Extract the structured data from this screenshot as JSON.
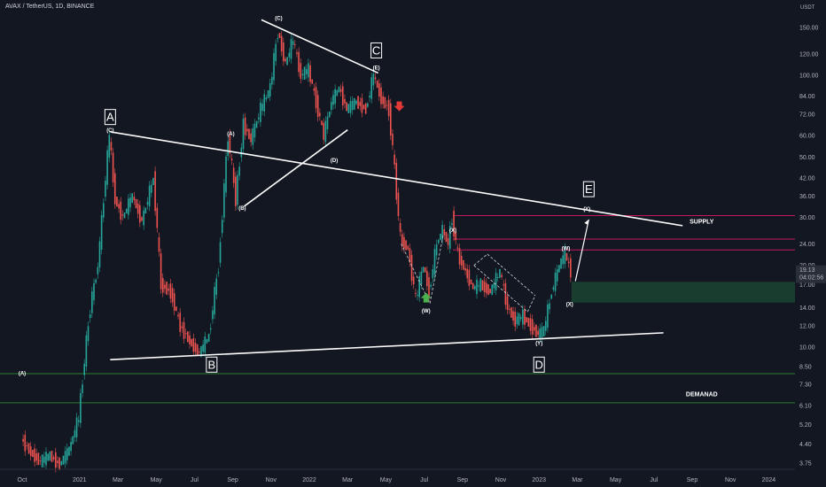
{
  "header": {
    "symbol_line": "AVAX / TetherUS, 1D, BINANCE"
  },
  "price_axis": {
    "currency": "USDT"
  },
  "chart_data": {
    "type": "candlestick",
    "title": "AVAX / TetherUS, 1D, BINANCE",
    "y_scale": "log",
    "ylim": [
      3.6,
      165
    ],
    "x_ticks": [
      {
        "label": "Oct",
        "month": 0
      },
      {
        "label": "2021",
        "month": 3
      },
      {
        "label": "Mar",
        "month": 5
      },
      {
        "label": "May",
        "month": 7
      },
      {
        "label": "Jul",
        "month": 9
      },
      {
        "label": "Sep",
        "month": 11
      },
      {
        "label": "Nov",
        "month": 13
      },
      {
        "label": "2022",
        "month": 15
      },
      {
        "label": "Mar",
        "month": 17
      },
      {
        "label": "May",
        "month": 19
      },
      {
        "label": "Jul",
        "month": 21
      },
      {
        "label": "Sep",
        "month": 23
      },
      {
        "label": "Nov",
        "month": 25
      },
      {
        "label": "2023",
        "month": 27
      },
      {
        "label": "Mar",
        "month": 29
      },
      {
        "label": "May",
        "month": 31
      },
      {
        "label": "Jul",
        "month": 33
      },
      {
        "label": "Sep",
        "month": 35
      },
      {
        "label": "Nov",
        "month": 37
      },
      {
        "label": "2024",
        "month": 39
      }
    ],
    "y_ticks": [
      "150.00",
      "120.00",
      "100.00",
      "84.00",
      "72.00",
      "60.00",
      "50.00",
      "42.00",
      "36.00",
      "30.00",
      "24.00",
      "20.00",
      "17.00",
      "14.00",
      "12.00",
      "10.00",
      "8.50",
      "7.30",
      "6.10",
      "5.20",
      "4.40",
      "3.75"
    ],
    "current_price": {
      "price": "19.13",
      "countdown": "04:02:56"
    },
    "price_path": [
      {
        "m": 0.0,
        "p": 4.6
      },
      {
        "m": 0.5,
        "p": 4.1
      },
      {
        "m": 1.0,
        "p": 3.8
      },
      {
        "m": 1.5,
        "p": 4.0
      },
      {
        "m": 2.0,
        "p": 3.7
      },
      {
        "m": 2.5,
        "p": 4.2
      },
      {
        "m": 3.0,
        "p": 5.5
      },
      {
        "m": 3.3,
        "p": 9.0
      },
      {
        "m": 3.6,
        "p": 14.0
      },
      {
        "m": 4.0,
        "p": 20.0
      },
      {
        "m": 4.3,
        "p": 35.0
      },
      {
        "m": 4.6,
        "p": 60.0
      },
      {
        "m": 4.9,
        "p": 35.0
      },
      {
        "m": 5.3,
        "p": 30.0
      },
      {
        "m": 5.8,
        "p": 36.0
      },
      {
        "m": 6.3,
        "p": 29.0
      },
      {
        "m": 6.9,
        "p": 42.0
      },
      {
        "m": 7.3,
        "p": 17.0
      },
      {
        "m": 7.8,
        "p": 16.0
      },
      {
        "m": 8.3,
        "p": 12.0
      },
      {
        "m": 8.8,
        "p": 10.5
      },
      {
        "m": 9.3,
        "p": 9.5
      },
      {
        "m": 9.8,
        "p": 11.0
      },
      {
        "m": 10.3,
        "p": 20.0
      },
      {
        "m": 10.8,
        "p": 60.0
      },
      {
        "m": 11.2,
        "p": 35.0
      },
      {
        "m": 11.6,
        "p": 66.0
      },
      {
        "m": 12.0,
        "p": 58.0
      },
      {
        "m": 12.5,
        "p": 75.0
      },
      {
        "m": 13.0,
        "p": 90.0
      },
      {
        "m": 13.4,
        "p": 145.0
      },
      {
        "m": 13.8,
        "p": 110.0
      },
      {
        "m": 14.2,
        "p": 135.0
      },
      {
        "m": 14.6,
        "p": 100.0
      },
      {
        "m": 15.0,
        "p": 105.0
      },
      {
        "m": 15.4,
        "p": 80.0
      },
      {
        "m": 15.8,
        "p": 60.0
      },
      {
        "m": 16.2,
        "p": 80.0
      },
      {
        "m": 16.6,
        "p": 90.0
      },
      {
        "m": 17.0,
        "p": 75.0
      },
      {
        "m": 17.5,
        "p": 80.0
      },
      {
        "m": 18.0,
        "p": 75.0
      },
      {
        "m": 18.4,
        "p": 100.0
      },
      {
        "m": 18.8,
        "p": 82.0
      },
      {
        "m": 19.2,
        "p": 75.0
      },
      {
        "m": 19.5,
        "p": 45.0
      },
      {
        "m": 19.8,
        "p": 25.0
      },
      {
        "m": 20.2,
        "p": 23.0
      },
      {
        "m": 20.6,
        "p": 15.0
      },
      {
        "m": 21.0,
        "p": 20.0
      },
      {
        "m": 21.3,
        "p": 16.0
      },
      {
        "m": 21.7,
        "p": 24.0
      },
      {
        "m": 22.0,
        "p": 27.0
      },
      {
        "m": 22.3,
        "p": 24.0
      },
      {
        "m": 22.5,
        "p": 30.0
      },
      {
        "m": 22.8,
        "p": 22.0
      },
      {
        "m": 23.2,
        "p": 19.0
      },
      {
        "m": 23.6,
        "p": 16.5
      },
      {
        "m": 24.0,
        "p": 17.0
      },
      {
        "m": 24.5,
        "p": 16.0
      },
      {
        "m": 25.0,
        "p": 19.0
      },
      {
        "m": 25.4,
        "p": 14.0
      },
      {
        "m": 25.8,
        "p": 12.5
      },
      {
        "m": 26.2,
        "p": 13.0
      },
      {
        "m": 26.6,
        "p": 12.0
      },
      {
        "m": 27.0,
        "p": 11.2
      },
      {
        "m": 27.3,
        "p": 11.5
      },
      {
        "m": 27.7,
        "p": 16.0
      },
      {
        "m": 28.1,
        "p": 20.0
      },
      {
        "m": 28.4,
        "p": 22.0
      },
      {
        "m": 28.7,
        "p": 19.13
      }
    ],
    "horizontal_lines": [
      {
        "price": 30.5,
        "color": "#c2185b"
      },
      {
        "price": 25.0,
        "color": "#c2185b"
      },
      {
        "price": 22.8,
        "color": "#c2185b"
      },
      {
        "price": 8.0,
        "color": "#2e7d32"
      },
      {
        "price": 6.25,
        "color": "#2e7d32"
      }
    ],
    "demand_zone": {
      "m_from": 28.7,
      "m_to": 40,
      "p_low": 14.6,
      "p_high": 17.4,
      "color": "#1b4332"
    },
    "trendlines": [
      {
        "from": {
          "m": 4.6,
          "p": 62
        },
        "to": {
          "m": 34.5,
          "p": 28
        }
      },
      {
        "from": {
          "m": 4.6,
          "p": 9
        },
        "to": {
          "m": 33.5,
          "p": 11.3
        }
      },
      {
        "from": {
          "m": 12.5,
          "p": 160
        },
        "to": {
          "m": 18.6,
          "p": 102
        }
      },
      {
        "from": {
          "m": 11.6,
          "p": 33
        },
        "to": {
          "m": 17.0,
          "p": 63
        }
      }
    ],
    "projection_arrow": {
      "from": {
        "m": 28.9,
        "p": 17.5
      },
      "to": {
        "m": 29.6,
        "p": 29.5
      }
    },
    "wave_labels": [
      {
        "text": "(A)",
        "m": 0.0,
        "p": 7.9
      },
      {
        "text": "(C)",
        "m": 4.6,
        "p": 62
      },
      {
        "text": "(A)",
        "m": 10.9,
        "p": 60
      },
      {
        "text": "(B)",
        "m": 11.5,
        "p": 32
      },
      {
        "text": "(C)",
        "m": 13.4,
        "p": 160
      },
      {
        "text": "(D)",
        "m": 16.3,
        "p": 48
      },
      {
        "text": "(E)",
        "m": 18.5,
        "p": 105
      },
      {
        "text": "(X)",
        "m": 22.5,
        "p": 26.5
      },
      {
        "text": "(W)",
        "m": 21.1,
        "p": 13.4
      },
      {
        "text": "(Y)",
        "m": 27.0,
        "p": 10.2
      },
      {
        "text": "(W)",
        "m": 28.4,
        "p": 22.8
      },
      {
        "text": "(X)",
        "m": 28.6,
        "p": 14.2
      },
      {
        "text": "(Y)",
        "m": 29.5,
        "p": 31.8
      }
    ],
    "box_labels": [
      {
        "text": "A",
        "m": 4.6,
        "p": 70
      },
      {
        "text": "B",
        "m": 9.9,
        "p": 8.6
      },
      {
        "text": "C",
        "m": 18.5,
        "p": 123
      },
      {
        "text": "D",
        "m": 27.0,
        "p": 8.6
      },
      {
        "text": "E",
        "m": 29.6,
        "p": 38
      }
    ],
    "zone_labels": [
      {
        "text": "SUPPLY",
        "m": 35.5,
        "p": 28.5
      },
      {
        "text": "DEMANAD",
        "m": 35.5,
        "p": 6.6
      }
    ],
    "signal_arrows": [
      {
        "direction": "down",
        "m": 19.7,
        "p": 76,
        "color": "#e53935"
      },
      {
        "direction": "up",
        "m": 21.1,
        "p": 15.4,
        "color": "#4caf50"
      }
    ]
  }
}
